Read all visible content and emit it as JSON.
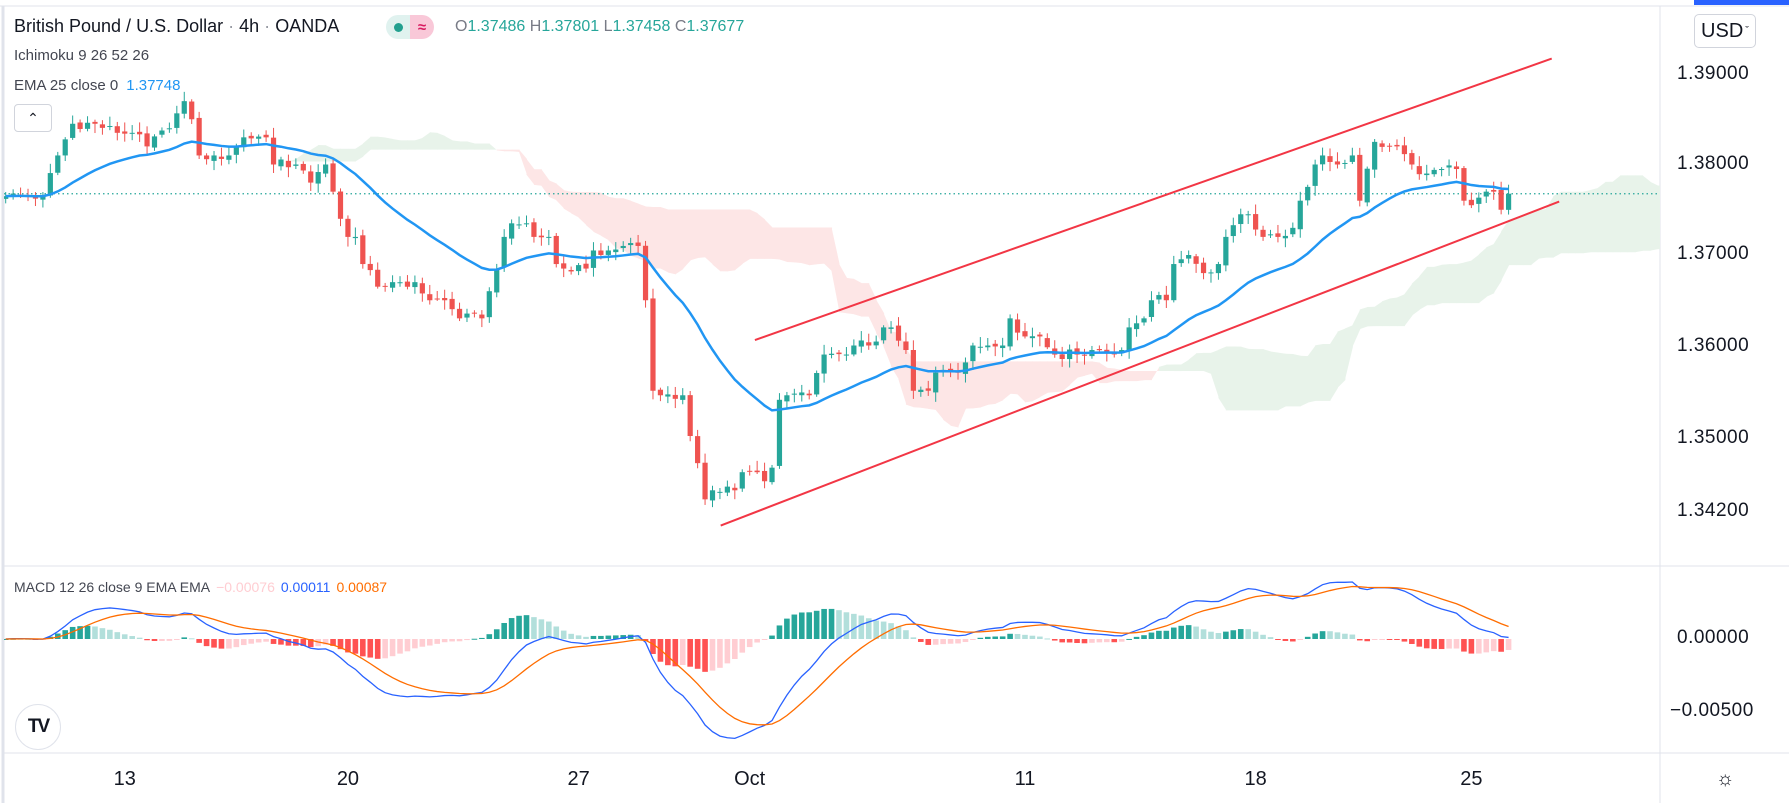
{
  "header": {
    "symbol": "British Pound / U.S. Dollar",
    "interval": "4h",
    "exchange": "OANDA",
    "separator": "·",
    "ohlc": [
      {
        "key": "O",
        "value": "1.37486"
      },
      {
        "key": "H",
        "value": "1.37801"
      },
      {
        "key": "L",
        "value": "1.37458"
      },
      {
        "key": "C",
        "value": "1.37677"
      }
    ],
    "badge_icon": "wave-icon"
  },
  "indicators": {
    "ichimoku_label": "Ichimoku 9 26 52 26",
    "ema_label": "EMA 25 close 0",
    "ema_value": "1.37748",
    "collapse_icon": "chevron-up-icon"
  },
  "price_axis": {
    "currency_button": "USD",
    "ticks": [
      "1.39000",
      "1.38000",
      "1.37000",
      "1.36000",
      "1.35000",
      "1.34200"
    ]
  },
  "macd": {
    "label": "MACD 12 26 close 9 EMA EMA",
    "histogram_value": "−0.00076",
    "macd_value": "0.00011",
    "signal_value": "0.00087",
    "ticks": [
      "0.00000",
      "−0.00500"
    ]
  },
  "time_axis": {
    "labels": [
      "13",
      "20",
      "27",
      "Oct",
      "11",
      "18",
      "25"
    ]
  },
  "logo_text": "TV",
  "colors": {
    "up": "#26a69a",
    "down": "#ef5350",
    "ema": "#2196f3",
    "channel": "#f23645",
    "macd": "#2962ff",
    "signal": "#ff6d00",
    "cloud_up": "#e8f3ea",
    "cloud_down": "#fde6e6"
  },
  "chart_data": {
    "type": "candlestick",
    "title": "British Pound / U.S. Dollar · 4h · OANDA",
    "ylim": [
      1.338,
      1.396
    ],
    "price_ticks": [
      1.39,
      1.38,
      1.37,
      1.36,
      1.35,
      1.342
    ],
    "last_price": 1.37677,
    "bar_count": 203,
    "time_label_bars": [
      16,
      46,
      77,
      100,
      137,
      168,
      197
    ],
    "close_anchors": [
      [
        0,
        1.3765
      ],
      [
        5,
        1.3765
      ],
      [
        7,
        1.381
      ],
      [
        9,
        1.3845
      ],
      [
        12,
        1.3845
      ],
      [
        15,
        1.3835
      ],
      [
        17,
        1.3835
      ],
      [
        19,
        1.382
      ],
      [
        22,
        1.384
      ],
      [
        24,
        1.387
      ],
      [
        25,
        1.385
      ],
      [
        26,
        1.381
      ],
      [
        28,
        1.381
      ],
      [
        30,
        1.381
      ],
      [
        32,
        1.383
      ],
      [
        35,
        1.383
      ],
      [
        36,
        1.38
      ],
      [
        39,
        1.38
      ],
      [
        41,
        1.378
      ],
      [
        43,
        1.38
      ],
      [
        45,
        1.374
      ],
      [
        46,
        1.372
      ],
      [
        47,
        1.372
      ],
      [
        48,
        1.369
      ],
      [
        50,
        1.3665
      ],
      [
        51,
        1.3665
      ],
      [
        52,
        1.367
      ],
      [
        55,
        1.367
      ],
      [
        57,
        1.365
      ],
      [
        59,
        1.365
      ],
      [
        61,
        1.363
      ],
      [
        64,
        1.363
      ],
      [
        65,
        1.366
      ],
      [
        67,
        1.372
      ],
      [
        68,
        1.3735
      ],
      [
        70,
        1.3735
      ],
      [
        71,
        1.372
      ],
      [
        73,
        1.372
      ],
      [
        74,
        1.369
      ],
      [
        75,
        1.3685
      ],
      [
        78,
        1.3685
      ],
      [
        79,
        1.3705
      ],
      [
        81,
        1.3705
      ],
      [
        83,
        1.371
      ],
      [
        85,
        1.371
      ],
      [
        86,
        1.365
      ],
      [
        87,
        1.355
      ],
      [
        88,
        1.3545
      ],
      [
        91,
        1.3545
      ],
      [
        92,
        1.35
      ],
      [
        93,
        1.347
      ],
      [
        94,
        1.343
      ],
      [
        95,
        1.344
      ],
      [
        98,
        1.344
      ],
      [
        99,
        1.346
      ],
      [
        101,
        1.346
      ],
      [
        102,
        1.345
      ],
      [
        103,
        1.3465
      ],
      [
        104,
        1.354
      ],
      [
        105,
        1.3545
      ],
      [
        108,
        1.3545
      ],
      [
        110,
        1.359
      ],
      [
        113,
        1.359
      ],
      [
        114,
        1.36
      ],
      [
        116,
        1.36
      ],
      [
        118,
        1.362
      ],
      [
        119,
        1.362
      ],
      [
        121,
        1.3595
      ],
      [
        122,
        1.355
      ],
      [
        124,
        1.355
      ],
      [
        125,
        1.357
      ],
      [
        128,
        1.357
      ],
      [
        130,
        1.36
      ],
      [
        132,
        1.36
      ],
      [
        134,
        1.36
      ],
      [
        135,
        1.363
      ],
      [
        137,
        1.361
      ],
      [
        139,
        1.361
      ],
      [
        141,
        1.359
      ],
      [
        144,
        1.359
      ],
      [
        146,
        1.3595
      ],
      [
        150,
        1.3595
      ],
      [
        151,
        1.362
      ],
      [
        153,
        1.363
      ],
      [
        154,
        1.365
      ],
      [
        156,
        1.365
      ],
      [
        157,
        1.369
      ],
      [
        159,
        1.37
      ],
      [
        161,
        1.368
      ],
      [
        163,
        1.369
      ],
      [
        164,
        1.372
      ],
      [
        166,
        1.3745
      ],
      [
        167,
        1.3745
      ],
      [
        169,
        1.372
      ],
      [
        171,
        1.372
      ],
      [
        173,
        1.373
      ],
      [
        174,
        1.376
      ],
      [
        176,
        1.38
      ],
      [
        177,
        1.381
      ],
      [
        179,
        1.38
      ],
      [
        181,
        1.381
      ],
      [
        182,
        1.376
      ],
      [
        184,
        1.3825
      ],
      [
        186,
        1.382
      ],
      [
        187,
        1.382
      ],
      [
        189,
        1.38
      ],
      [
        191,
        1.379
      ],
      [
        193,
        1.3795
      ],
      [
        195,
        1.3795
      ],
      [
        196,
        1.376
      ],
      [
        197,
        1.3755
      ],
      [
        199,
        1.377
      ],
      [
        200,
        1.377
      ],
      [
        201,
        1.375
      ],
      [
        202,
        1.37677
      ]
    ],
    "channel": {
      "upper": [
        [
          100.7,
          1.3606
        ],
        [
          207.8,
          1.3917
        ]
      ],
      "lower": [
        [
          96.1,
          1.3401
        ],
        [
          208.8,
          1.3759
        ]
      ]
    },
    "ema_period": 25,
    "ichimoku": {
      "tenkan": 9,
      "kijun": 26,
      "span_b": 52,
      "displacement": 26
    },
    "macd_params": {
      "fast": 12,
      "slow": 26,
      "signal": 9
    },
    "macd_ylim": [
      -0.0085,
      0.0045
    ]
  }
}
